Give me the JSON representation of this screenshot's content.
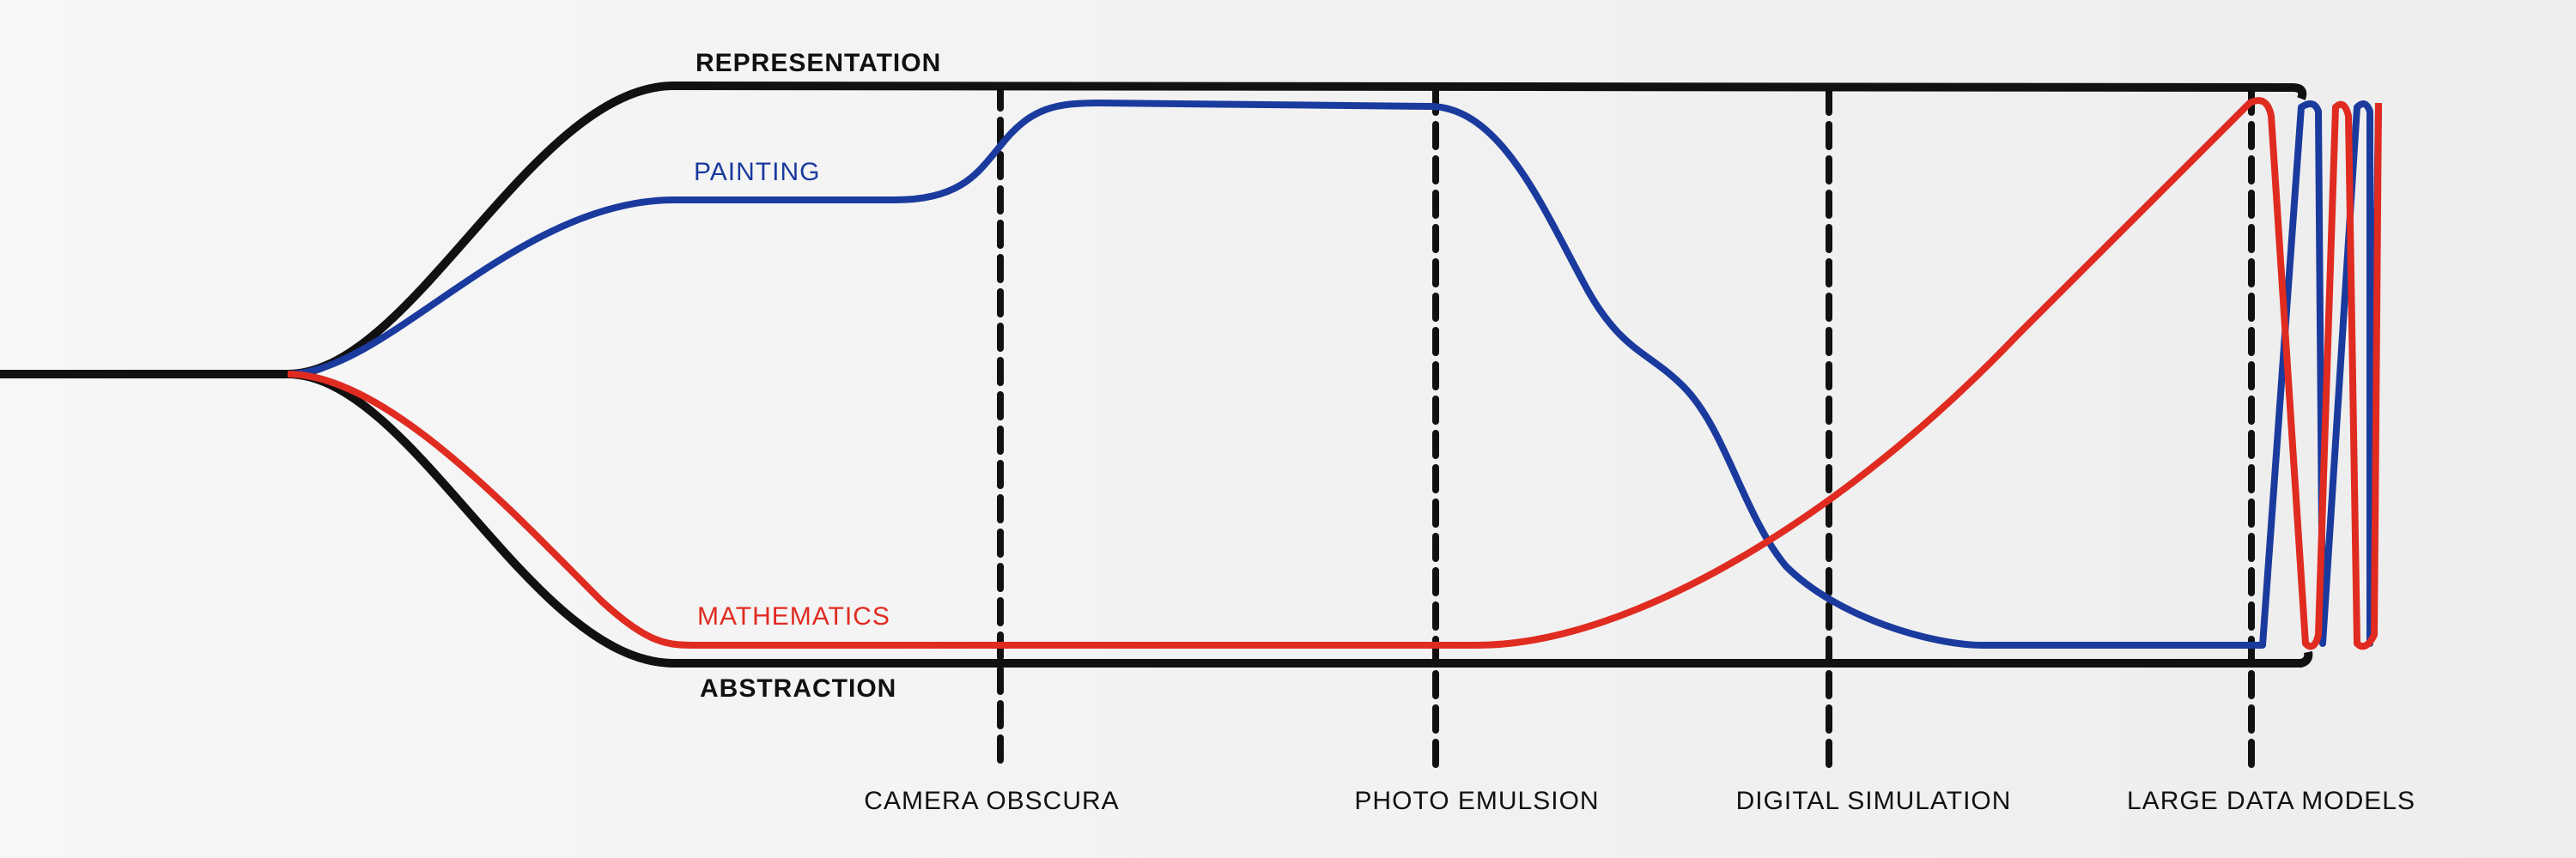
{
  "axis": {
    "top": "REPRESENTATION",
    "bottom": "ABSTRACTION"
  },
  "paths": [
    {
      "label": "PAINTING"
    },
    {
      "label": "MATHEMATICS"
    }
  ],
  "milestones": [
    "CAMERA OBSCURA",
    "PHOTO EMULSION",
    "DIGITAL SIMULATION",
    "LARGE DATA MODELS"
  ]
}
